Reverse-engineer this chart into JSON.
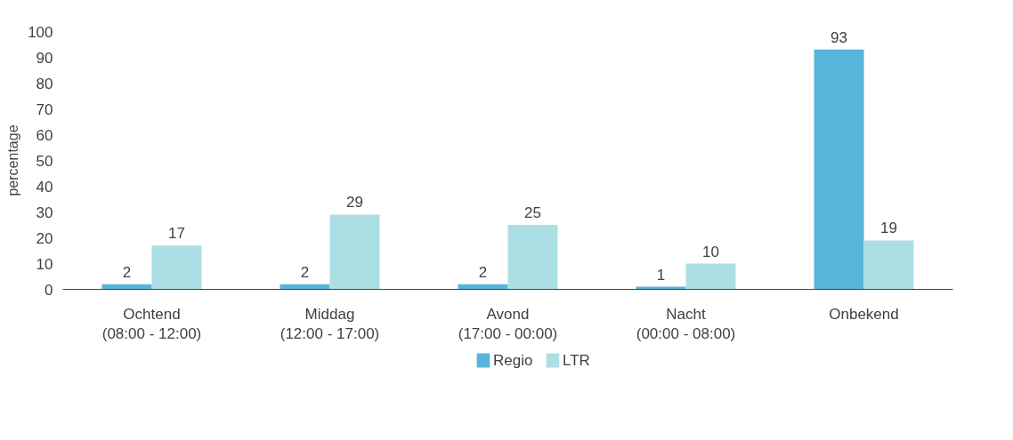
{
  "chart_data": {
    "type": "bar",
    "ylabel": "percentage",
    "categories": [
      "Ochtend\n(08:00 - 12:00)",
      "Middag\n(12:00 - 17:00)",
      "Avond\n(17:00 - 00:00)",
      "Nacht\n(00:00 - 08:00)",
      "Onbekend"
    ],
    "series": [
      {
        "name": "Regio",
        "color": "#56b5db",
        "values": [
          2,
          2,
          2,
          1,
          93
        ]
      },
      {
        "name": "LTR",
        "color": "#acdfe3",
        "values": [
          17,
          29,
          25,
          10,
          19
        ]
      }
    ],
    "ylim": [
      0,
      100
    ],
    "yticks": [
      0,
      10,
      20,
      30,
      40,
      50,
      60,
      70,
      80,
      90,
      100
    ],
    "grid": false,
    "legend": "bottom",
    "data_labels": true
  }
}
